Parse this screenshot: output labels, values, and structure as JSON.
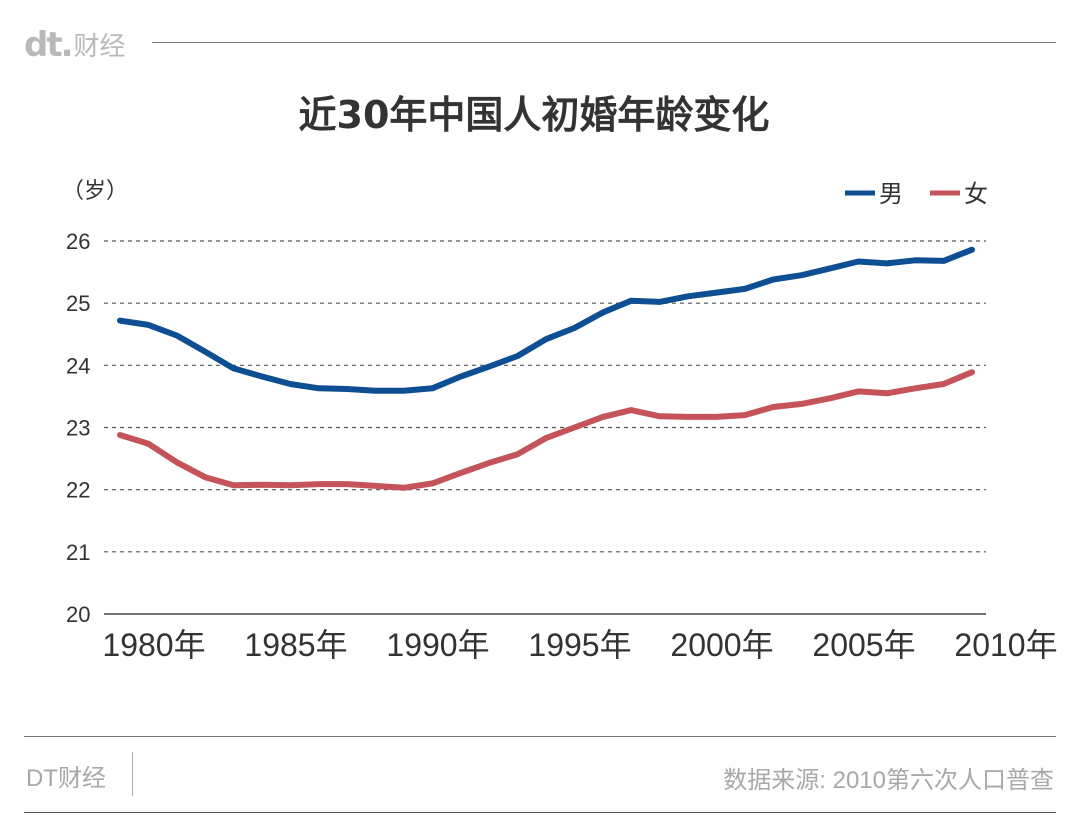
{
  "header": {
    "logo_mark": "dt.",
    "logo_text": "财经"
  },
  "title": "近30年中国人初婚年龄变化",
  "footer": {
    "brand": "DT财经",
    "source": "数据来源: 2010第六次人口普查"
  },
  "colors": {
    "male": "#0d4f92",
    "female": "#c5545a",
    "grid": "#555555",
    "axis": "#444444"
  },
  "chart_data": {
    "type": "line",
    "title": "近30年中国人初婚年龄变化",
    "ylabel": "（岁）",
    "xlabel": "",
    "ylim": [
      20,
      26
    ],
    "xlim": [
      1980,
      2010
    ],
    "yticks": [
      "20",
      "21",
      "22",
      "23",
      "24",
      "25",
      "26"
    ],
    "xticks": [
      {
        "value": 1980,
        "label": "1980年"
      },
      {
        "value": 1985,
        "label": "1985年"
      },
      {
        "value": 1990,
        "label": "1990年"
      },
      {
        "value": 1995,
        "label": "1995年"
      },
      {
        "value": 2000,
        "label": "2000年"
      },
      {
        "value": 2005,
        "label": "2005年"
      },
      {
        "value": 2010,
        "label": "2010年"
      }
    ],
    "grid": true,
    "legend_position": "top-right",
    "x": [
      1980,
      1981,
      1982,
      1983,
      1984,
      1985,
      1986,
      1987,
      1988,
      1989,
      1990,
      1991,
      1992,
      1993,
      1994,
      1995,
      1996,
      1997,
      1998,
      1999,
      2000,
      2001,
      2002,
      2003,
      2004,
      2005,
      2006,
      2007,
      2008,
      2009,
      2010
    ],
    "series": [
      {
        "name": "男",
        "color": "#0d4f92",
        "values": [
          24.72,
          24.65,
          24.48,
          24.22,
          23.95,
          23.82,
          23.7,
          23.63,
          23.62,
          23.59,
          23.59,
          23.63,
          23.82,
          23.98,
          24.15,
          24.42,
          24.6,
          24.85,
          25.04,
          25.02,
          25.11,
          25.17,
          25.23,
          25.38,
          25.45,
          25.56,
          25.67,
          25.64,
          25.69,
          25.68,
          25.86
        ]
      },
      {
        "name": "女",
        "color": "#c5545a",
        "values": [
          22.88,
          22.74,
          22.44,
          22.2,
          22.07,
          22.08,
          22.07,
          22.09,
          22.09,
          22.06,
          22.03,
          22.1,
          22.27,
          22.43,
          22.57,
          22.83,
          23.0,
          23.17,
          23.28,
          23.18,
          23.17,
          23.17,
          23.2,
          23.33,
          23.38,
          23.47,
          23.58,
          23.55,
          23.63,
          23.7,
          23.89
        ]
      }
    ]
  }
}
